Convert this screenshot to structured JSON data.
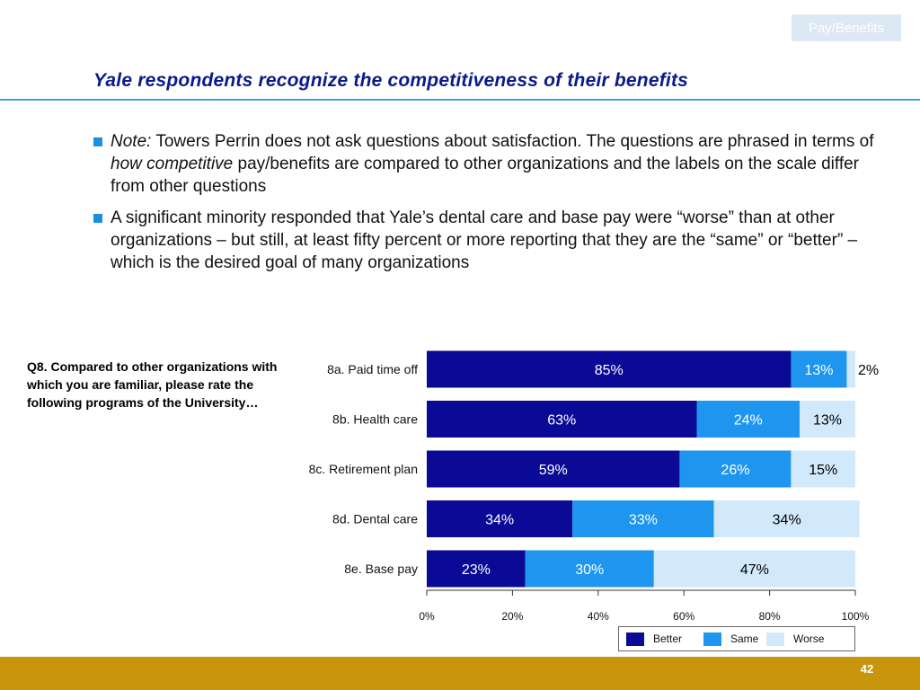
{
  "section_tag": "Pay/Benefits",
  "title": "Yale respondents recognize the competitiveness of their benefits",
  "bullets": [
    {
      "note_label": "Note:",
      "text_a": " Towers Perrin does not ask questions about satisfaction. The questions are phrased in terms of ",
      "emph": "how competitive",
      "text_b": " pay/benefits are compared to other organizations and the labels on the scale differ from other questions"
    },
    {
      "text": "A significant minority responded that Yale’s dental care and base pay were “worse” than at other organizations – but still, at least fifty percent or more reporting that they are the “same” or “better” – which is the desired goal of many organizations"
    }
  ],
  "question": "Q8. Compared to other organizations with which you are familiar, please rate the following programs of the University…",
  "page_number": "42",
  "colors": {
    "title": "#0a1a8c",
    "rule": "#3da2e0",
    "bullet": "#1d8fe0",
    "footer": "#c8960d",
    "tag_bg": "#dce8f4"
  },
  "chart_data": {
    "type": "bar",
    "orientation": "horizontal",
    "stacked": true,
    "categories": [
      "8a. Paid time off",
      "8b. Health care",
      "8c. Retirement plan",
      "8d. Dental care",
      "8e. Base pay"
    ],
    "series": [
      {
        "name": "Better",
        "color": "#0a0a96",
        "values": [
          85,
          63,
          59,
          34,
          23
        ],
        "labels": [
          "85%",
          "63%",
          "59%",
          "34%",
          "23%"
        ],
        "label_color": "#ffffff"
      },
      {
        "name": "Same",
        "color": "#1e96f0",
        "values": [
          13,
          24,
          26,
          33,
          30
        ],
        "labels": [
          "13%",
          "24%",
          "26%",
          "33%",
          "30%"
        ],
        "label_color": "#ffffff"
      },
      {
        "name": "Worse",
        "color": "#d2e9fb",
        "values": [
          2,
          13,
          15,
          34,
          47
        ],
        "labels": [
          "2%",
          "13%",
          "15%",
          "34%",
          "47%"
        ],
        "label_color": "#000000"
      }
    ],
    "xlim": [
      0,
      100
    ],
    "x_ticks": [
      "0%",
      "20%",
      "40%",
      "60%",
      "80%",
      "100%"
    ],
    "grid": false,
    "legend_position": "bottom-right"
  }
}
